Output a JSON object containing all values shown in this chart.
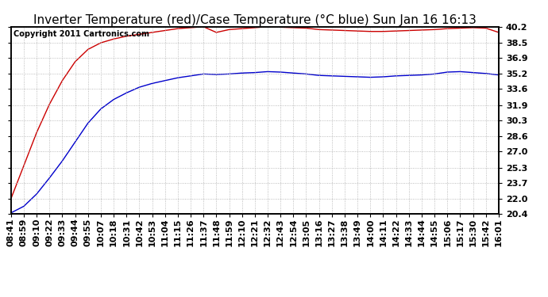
{
  "title": "Inverter Temperature (red)/Case Temperature (°C blue) Sun Jan 16 16:13",
  "copyright": "Copyright 2011 Cartronics.com",
  "yticks": [
    20.4,
    22.0,
    23.7,
    25.3,
    27.0,
    28.6,
    30.3,
    31.9,
    33.6,
    35.2,
    36.9,
    38.5,
    40.2
  ],
  "ymin": 20.4,
  "ymax": 40.2,
  "xtick_labels": [
    "08:41",
    "08:59",
    "09:10",
    "09:22",
    "09:33",
    "09:44",
    "09:55",
    "10:07",
    "10:18",
    "10:31",
    "10:42",
    "10:53",
    "11:04",
    "11:15",
    "11:26",
    "11:37",
    "11:48",
    "11:59",
    "12:10",
    "12:21",
    "12:32",
    "12:43",
    "12:54",
    "13:05",
    "13:16",
    "13:27",
    "13:38",
    "13:49",
    "14:00",
    "14:11",
    "14:22",
    "14:33",
    "14:44",
    "14:55",
    "15:06",
    "15:17",
    "15:30",
    "15:42",
    "16:01"
  ],
  "red_line_color": "#cc0000",
  "blue_line_color": "#0000cc",
  "background_color": "#ffffff",
  "plot_bg_color": "#ffffff",
  "grid_color": "#aaaaaa",
  "title_fontsize": 11,
  "tick_fontsize": 8,
  "copyright_fontsize": 7,
  "red_data": [
    22.0,
    25.5,
    29.0,
    32.0,
    34.5,
    36.5,
    37.8,
    38.5,
    38.9,
    39.2,
    39.4,
    39.6,
    39.8,
    40.0,
    40.1,
    40.2,
    39.6,
    39.9,
    40.0,
    40.1,
    40.2,
    40.15,
    40.1,
    40.05,
    39.9,
    39.85,
    39.8,
    39.75,
    39.7,
    39.7,
    39.75,
    39.8,
    39.85,
    39.9,
    40.0,
    40.05,
    40.1,
    40.05,
    39.6
  ],
  "blue_data": [
    20.5,
    21.2,
    22.5,
    24.2,
    26.0,
    28.0,
    30.0,
    31.5,
    32.5,
    33.2,
    33.8,
    34.2,
    34.5,
    34.8,
    35.0,
    35.2,
    35.15,
    35.2,
    35.3,
    35.35,
    35.45,
    35.4,
    35.3,
    35.2,
    35.05,
    35.0,
    34.95,
    34.9,
    34.85,
    34.9,
    35.0,
    35.05,
    35.1,
    35.2,
    35.4,
    35.45,
    35.35,
    35.25,
    35.1
  ]
}
